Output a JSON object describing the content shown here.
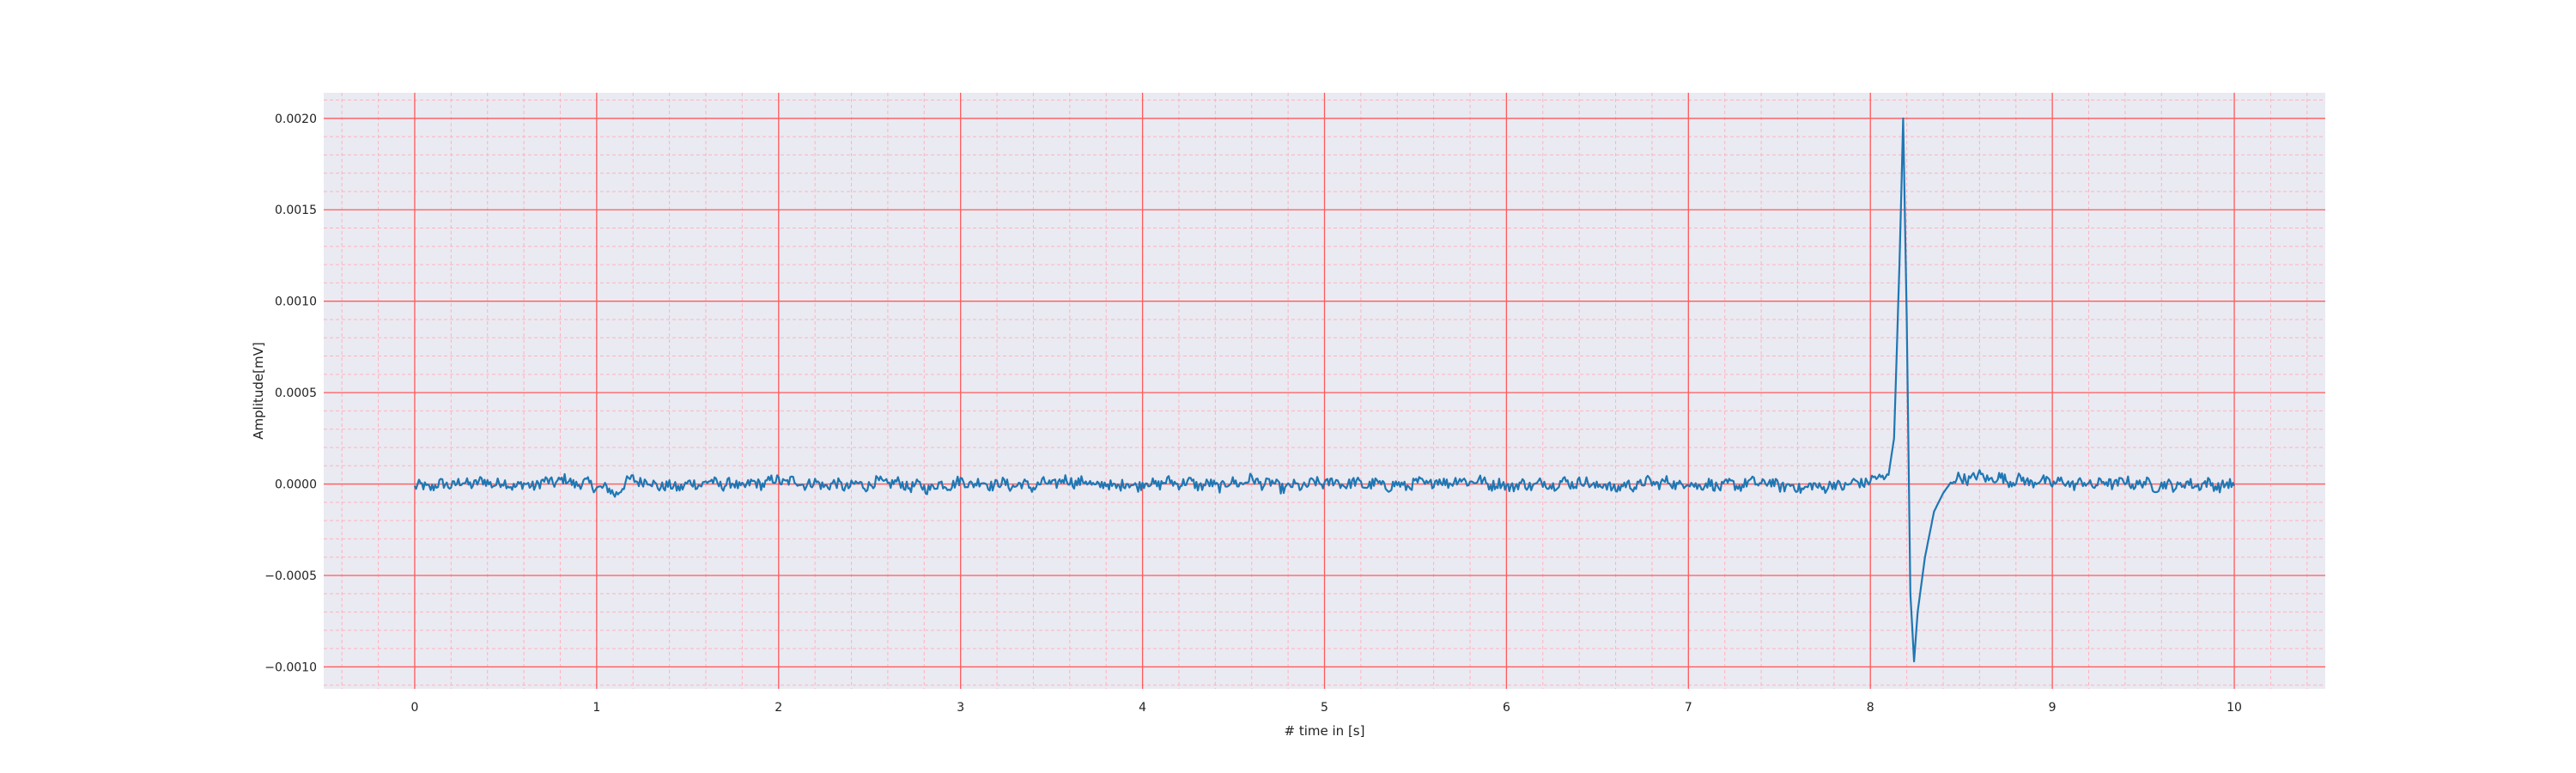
{
  "chart_data": {
    "type": "line",
    "title": "",
    "xlabel": "# time in [s]",
    "ylabel": "Amplitude[mV]",
    "xlim": [
      -0.5,
      10.5
    ],
    "ylim": [
      -0.00112,
      0.00214
    ],
    "xticks": [
      0,
      1,
      2,
      3,
      4,
      5,
      6,
      7,
      8,
      9,
      10
    ],
    "xtick_labels": [
      "0",
      "1",
      "2",
      "3",
      "4",
      "5",
      "6",
      "7",
      "8",
      "9",
      "10"
    ],
    "yticks": [
      -0.001,
      -0.0005,
      0.0,
      0.0005,
      0.001,
      0.0015,
      0.002
    ],
    "ytick_labels": [
      "−0.0010",
      "−0.0005",
      "0.0000",
      "0.0005",
      "0.0010",
      "0.0015",
      "0.0020"
    ],
    "grid": {
      "major": true,
      "minor": true,
      "major_color": "#ff5a5a",
      "minor_color": "#ffb3bd"
    },
    "background_color": "#eaeaf2",
    "series": [
      {
        "color": "#1f77b4",
        "x": [
          0.0,
          0.2,
          0.4,
          0.6,
          0.8,
          1.0,
          1.1,
          1.2,
          1.4,
          1.6,
          1.8,
          2.0,
          2.2,
          2.4,
          2.6,
          2.8,
          3.0,
          3.2,
          3.4,
          3.6,
          3.8,
          4.0,
          4.2,
          4.4,
          4.6,
          4.8,
          5.0,
          5.2,
          5.4,
          5.6,
          5.8,
          6.0,
          6.2,
          6.4,
          6.6,
          6.8,
          7.0,
          7.2,
          7.4,
          7.6,
          7.8,
          7.9,
          8.0,
          8.05,
          8.1,
          8.13,
          8.16,
          8.18,
          8.2,
          8.22,
          8.24,
          8.26,
          8.3,
          8.35,
          8.4,
          8.45,
          8.5,
          8.6,
          8.7,
          8.8,
          9.0,
          9.2,
          9.4,
          9.6,
          9.8,
          10.0
        ],
        "y": [
          -2e-05,
          0.0,
          1e-05,
          -1e-05,
          2e-05,
          -1e-05,
          -5e-05,
          3e-05,
          -2e-05,
          1e-05,
          -1e-05,
          2e-05,
          0.0,
          -1e-05,
          1e-05,
          -2e-05,
          1e-05,
          0.0,
          -1e-05,
          2e-05,
          -1e-05,
          0.0,
          1e-05,
          -1e-05,
          2e-05,
          -2e-05,
          1e-05,
          0.0,
          -1e-05,
          1e-05,
          2e-05,
          -1e-05,
          0.0,
          1e-05,
          -2e-05,
          1e-05,
          0.0,
          -1e-05,
          1e-05,
          -2e-05,
          -1e-05,
          0.0,
          2e-05,
          3e-05,
          5e-05,
          0.00025,
          0.0012,
          0.002,
          0.0009,
          -0.0006,
          -0.00097,
          -0.0007,
          -0.0004,
          -0.00015,
          -5e-05,
          2e-05,
          3e-05,
          4e-05,
          3e-05,
          2e-05,
          1e-05,
          0.0,
          1e-05,
          -1e-05,
          0.0,
          -1e-05
        ]
      }
    ]
  }
}
